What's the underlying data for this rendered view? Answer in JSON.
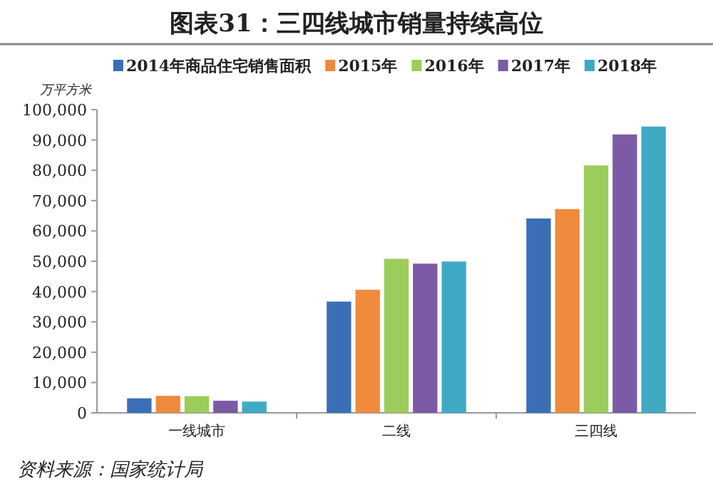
{
  "chart_data": {
    "type": "bar",
    "title": "图表31：三四线城市销量持续高位",
    "ylabel": "万平方米",
    "categories": [
      "一线城市",
      "二线",
      "三四线"
    ],
    "series": [
      {
        "name": "2014年商品住宅销售面积",
        "color": "#3a6fb5",
        "values": [
          4800,
          36700,
          64100
        ]
      },
      {
        "name": "2015年",
        "color": "#f08a3c",
        "values": [
          5600,
          40600,
          67200
        ]
      },
      {
        "name": "2016年",
        "color": "#9ccc5a",
        "values": [
          5500,
          50800,
          81600
        ]
      },
      {
        "name": "2017年",
        "color": "#7b5ba6",
        "values": [
          4000,
          49200,
          91800
        ]
      },
      {
        "name": "2018年",
        "color": "#3fa9c4",
        "values": [
          3700,
          49900,
          94400
        ]
      }
    ],
    "ylim": [
      0,
      100000
    ],
    "yticks": [
      {
        "value": 0,
        "label": "0"
      },
      {
        "value": 10000,
        "label": "10,000"
      },
      {
        "value": 20000,
        "label": "20,000"
      },
      {
        "value": 30000,
        "label": "30,000"
      },
      {
        "value": 40000,
        "label": "40,000"
      },
      {
        "value": 50000,
        "label": "50,000"
      },
      {
        "value": 60000,
        "label": "60,000"
      },
      {
        "value": 70000,
        "label": "70,000"
      },
      {
        "value": 80000,
        "label": "80,000"
      },
      {
        "value": 90000,
        "label": "90,000"
      },
      {
        "value": 100000,
        "label": "100,000"
      }
    ],
    "legend": "top",
    "grid": false,
    "annotations": [
      "资料来源：国家统计局"
    ]
  }
}
